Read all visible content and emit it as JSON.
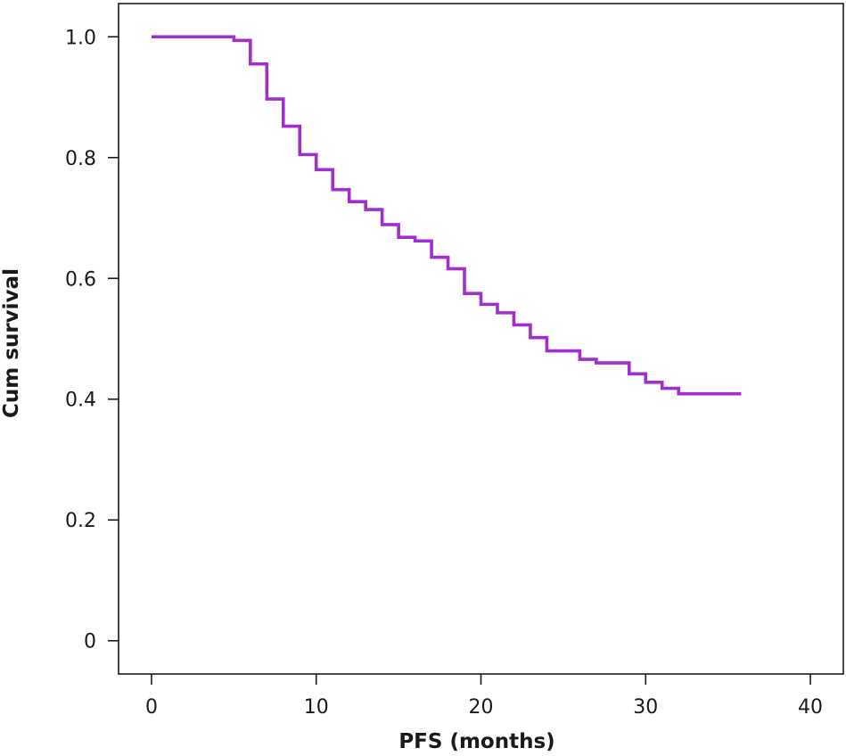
{
  "chart_data": {
    "type": "line",
    "step": true,
    "title": "",
    "xlabel": "PFS (months)",
    "ylabel": "Cum survival",
    "xlim": [
      -2,
      42
    ],
    "ylim": [
      -0.055,
      1.055
    ],
    "xticks": [
      0,
      10,
      20,
      30,
      40
    ],
    "xtick_labels": [
      "0",
      "10",
      "20",
      "30",
      "40"
    ],
    "yticks": [
      0,
      0.2,
      0.4,
      0.6,
      0.8,
      1.0
    ],
    "ytick_labels": [
      "0",
      "0.2",
      "0.4",
      "0.6",
      "0.8",
      "1.0"
    ],
    "grid": false,
    "legend": "none",
    "line_color": "#a12fcf",
    "series": [
      {
        "name": "Cum survival",
        "x": [
          0,
          5,
          6,
          7,
          8,
          9,
          10,
          11,
          12,
          13,
          14,
          15,
          16,
          17,
          18,
          19,
          20,
          21,
          22,
          23,
          24,
          26,
          27,
          29,
          30,
          31,
          32,
          35.8
        ],
        "y": [
          1.0,
          0.994,
          0.955,
          0.897,
          0.852,
          0.805,
          0.78,
          0.747,
          0.727,
          0.714,
          0.689,
          0.668,
          0.662,
          0.635,
          0.616,
          0.575,
          0.557,
          0.543,
          0.523,
          0.502,
          0.48,
          0.466,
          0.46,
          0.442,
          0.428,
          0.418,
          0.409,
          0.409
        ]
      }
    ]
  }
}
